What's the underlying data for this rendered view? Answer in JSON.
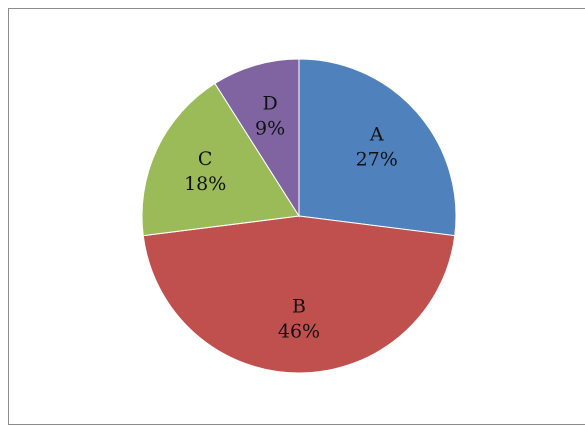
{
  "chart_data": {
    "type": "pie",
    "categories": [
      "A",
      "B",
      "C",
      "D"
    ],
    "values": [
      27,
      46,
      18,
      9
    ],
    "value_labels": [
      "27%",
      "46%",
      "18%",
      "9%"
    ],
    "colors": [
      "#4f81bd",
      "#c0504d",
      "#9bbb59",
      "#8064a2"
    ],
    "title": "",
    "legend": "none",
    "start_angle_deg": 0,
    "direction": "clockwise"
  }
}
